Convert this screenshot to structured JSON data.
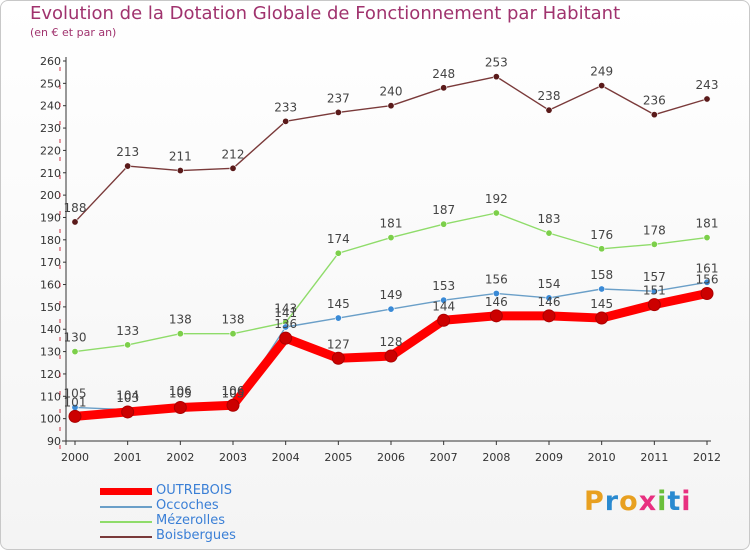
{
  "header": {
    "title": "Evolution de la Dotation Globale de Fonctionnement par Habitant",
    "subtitle": "(en € et par an)"
  },
  "brand": {
    "logo_text": "Proxiti"
  },
  "chart_data": {
    "type": "line",
    "title": "Evolution de la Dotation Globale de Fonctionnement par Habitant",
    "subtitle": "(en € et par an)",
    "xlabel": "",
    "ylabel": "",
    "categories": [
      "2000",
      "2001",
      "2002",
      "2003",
      "2004",
      "2005",
      "2006",
      "2007",
      "2008",
      "2009",
      "2010",
      "2011",
      "2012"
    ],
    "ylim": [
      90,
      260
    ],
    "yticks": [
      90,
      100,
      110,
      120,
      130,
      140,
      150,
      160,
      170,
      180,
      190,
      200,
      210,
      220,
      230,
      240,
      250,
      260
    ],
    "grid": false,
    "legend_position": "bottom-left",
    "series": [
      {
        "name": "OUTREBOIS",
        "color": "#ff0000",
        "point_color": "#cc0000",
        "values": [
          101,
          103,
          105,
          106,
          136,
          127,
          128,
          144,
          146,
          146,
          145,
          151,
          156
        ]
      },
      {
        "name": "Occoches",
        "color": "#6a9fc8",
        "point_color": "#3a8ad6",
        "values": [
          105,
          104,
          106,
          105,
          141,
          145,
          149,
          153,
          156,
          154,
          158,
          157,
          161
        ]
      },
      {
        "name": "Mézerolles",
        "color": "#8fdc6a",
        "point_color": "#7ccf4a",
        "values": [
          130,
          133,
          138,
          138,
          143,
          174,
          181,
          187,
          192,
          183,
          176,
          178,
          181
        ]
      },
      {
        "name": "Boisbergues",
        "color": "#7a3a3a",
        "point_color": "#5a1a1a",
        "values": [
          188,
          213,
          211,
          212,
          233,
          237,
          240,
          248,
          253,
          238,
          249,
          236,
          243
        ]
      }
    ]
  }
}
